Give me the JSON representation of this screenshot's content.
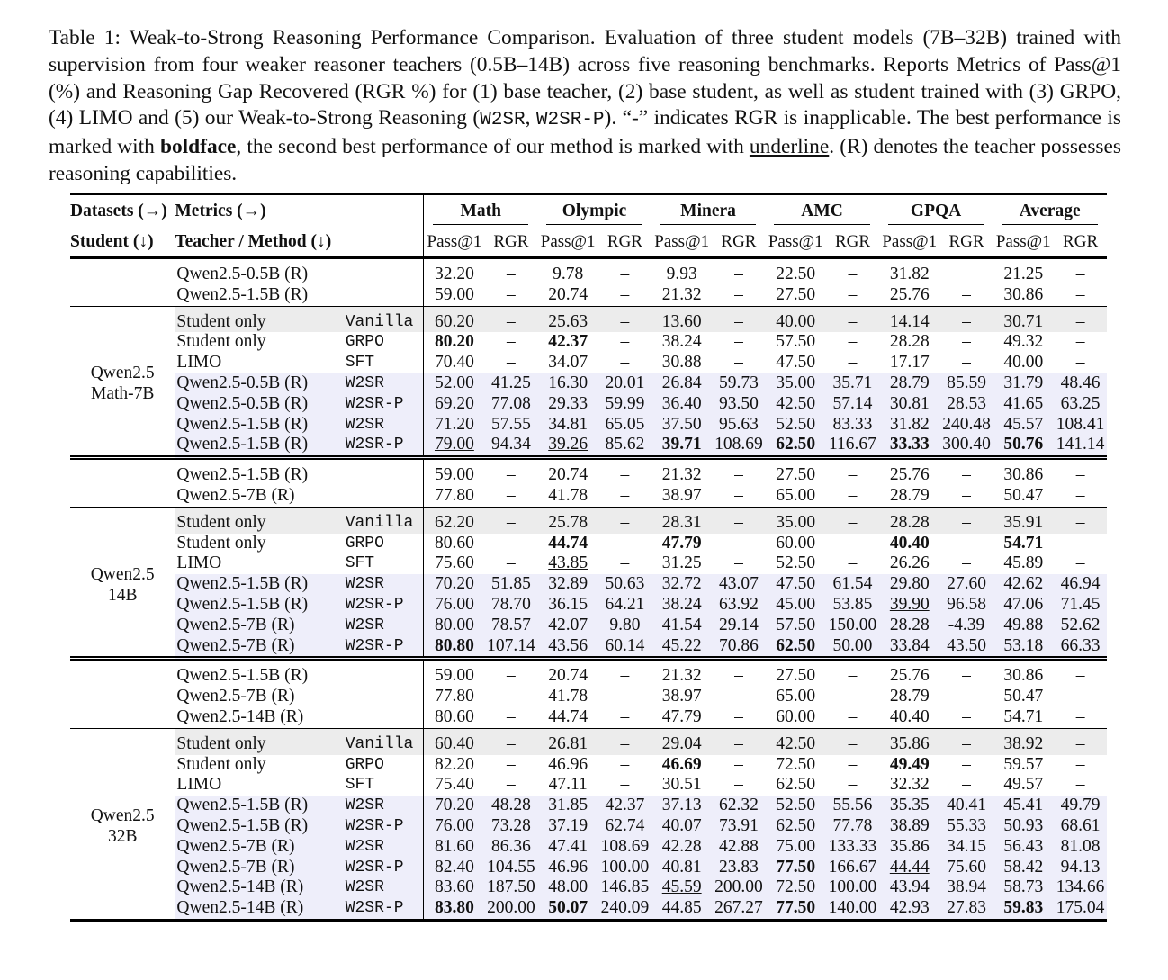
{
  "caption": [
    "Table 1: Weak-to-Strong Reasoning Performance Comparison. Evaluation of three student models (7B–32B) trained with supervision from four weaker reasoner teachers (0.5B–14B) across five reasoning benchmarks. Reports Metrics of Pass@1 (%) and Reasoning Gap Recovered (RGR %) for (1) base teacher, (2) base student, as well as student trained with (3) GRPO, (4) LIMO and (5) our Weak-to-Strong Reasoning (",
    "W2SR",
    ", ",
    "W2SR-P",
    "). “-” indicates RGR is inapplicable. The best performance is marked with ",
    "boldface",
    ", the second best performance of our method is marked with ",
    "underline",
    ". (R) denotes the teacher possesses reasoning capabilities."
  ],
  "table": {
    "header": {
      "datasets_label": "Datasets (→)",
      "metrics_label": "Metrics (→)",
      "student_label": "Student (↓)",
      "teacher_label": "Teacher / Method (↓)",
      "datasets": [
        "Math",
        "Olympic",
        "Minera",
        "AMC",
        "GPQA",
        "Average"
      ],
      "metrics": [
        "Pass@1",
        "RGR"
      ]
    },
    "groups": [
      {
        "student": [
          "Qwen2.5",
          "Math-7B"
        ],
        "teachers": [
          {
            "teacher": "Qwen2.5-0.5B (R)",
            "cells": [
              "32.20",
              "–",
              "9.78",
              "–",
              "9.93",
              "–",
              "22.50",
              "–",
              "31.82",
              null,
              "21.25",
              "–"
            ]
          },
          {
            "teacher": "Qwen2.5-1.5B (R)",
            "cells": [
              "59.00",
              "–",
              "20.74",
              "–",
              "21.32",
              "–",
              "27.50",
              "–",
              "25.76",
              "–",
              "30.86",
              "–"
            ]
          }
        ],
        "methods": [
          {
            "teacher": "Student only",
            "method": "Vanilla",
            "shade": "#ececec",
            "cells": [
              "60.20",
              "–",
              "25.63",
              "–",
              "13.60",
              "–",
              "40.00",
              "–",
              "14.14",
              "–",
              "30.71",
              "–"
            ]
          },
          {
            "teacher": "Student only",
            "method": "GRPO",
            "bold": [
              0,
              2
            ],
            "cells": [
              "80.20",
              "–",
              "42.37",
              "–",
              "38.24",
              "–",
              "57.50",
              "–",
              "28.28",
              "–",
              "49.32",
              "–"
            ]
          },
          {
            "teacher": "LIMO",
            "method": "SFT",
            "cells": [
              "70.40",
              "–",
              "34.07",
              "–",
              "30.88",
              "–",
              "47.50",
              "–",
              "17.17",
              "–",
              "40.00",
              "–"
            ]
          },
          {
            "teacher": "Qwen2.5-0.5B (R)",
            "method": "W2SR",
            "shade": "#eeeefa",
            "cells": [
              "52.00",
              "41.25",
              "16.30",
              "20.01",
              "26.84",
              "59.73",
              "35.00",
              "35.71",
              "28.79",
              "85.59",
              "31.79",
              "48.46"
            ]
          },
          {
            "teacher": "Qwen2.5-0.5B (R)",
            "method": "W2SR-P",
            "shade": "#eeeefa",
            "cells": [
              "69.20",
              "77.08",
              "29.33",
              "59.99",
              "36.40",
              "93.50",
              "42.50",
              "57.14",
              "30.81",
              "28.53",
              "41.65",
              "63.25"
            ]
          },
          {
            "teacher": "Qwen2.5-1.5B (R)",
            "method": "W2SR",
            "shade": "#eeeefa",
            "cells": [
              "71.20",
              "57.55",
              "34.81",
              "65.05",
              "37.50",
              "95.63",
              "52.50",
              "83.33",
              "31.82",
              "240.48",
              "45.57",
              "108.41"
            ]
          },
          {
            "teacher": "Qwen2.5-1.5B (R)",
            "method": "W2SR-P",
            "shade": "#eeeefa",
            "bold": [
              4,
              6,
              8,
              10
            ],
            "underline": [
              0,
              2
            ],
            "cells": [
              "79.00",
              "94.34",
              "39.26",
              "85.62",
              "39.71",
              "108.69",
              "62.50",
              "116.67",
              "33.33",
              "300.40",
              "50.76",
              "141.14"
            ]
          }
        ]
      },
      {
        "student": [
          "Qwen2.5",
          "14B"
        ],
        "teachers": [
          {
            "teacher": "Qwen2.5-1.5B (R)",
            "cells": [
              "59.00",
              "–",
              "20.74",
              "–",
              "21.32",
              "–",
              "27.50",
              "–",
              "25.76",
              "–",
              "30.86",
              "–"
            ]
          },
          {
            "teacher": "Qwen2.5-7B (R)",
            "cells": [
              "77.80",
              "–",
              "41.78",
              "–",
              "38.97",
              "–",
              "65.00",
              "–",
              "28.79",
              "–",
              "50.47",
              "–"
            ]
          }
        ],
        "methods": [
          {
            "teacher": "Student only",
            "method": "Vanilla",
            "shade": "#ececec",
            "cells": [
              "62.20",
              "–",
              "25.78",
              "–",
              "28.31",
              "–",
              "35.00",
              "–",
              "28.28",
              "–",
              "35.91",
              "–"
            ]
          },
          {
            "teacher": "Student only",
            "method": "GRPO",
            "bold": [
              2,
              4,
              8,
              10
            ],
            "cells": [
              "80.60",
              "–",
              "44.74",
              "–",
              "47.79",
              "–",
              "60.00",
              "–",
              "40.40",
              "–",
              "54.71",
              "–"
            ]
          },
          {
            "teacher": "LIMO",
            "method": "SFT",
            "underline": [
              2
            ],
            "cells": [
              "75.60",
              "–",
              "43.85",
              "–",
              "31.25",
              "–",
              "52.50",
              "–",
              "26.26",
              "–",
              "45.89",
              "–"
            ]
          },
          {
            "teacher": "Qwen2.5-1.5B (R)",
            "method": "W2SR",
            "shade": "#eeeefa",
            "cells": [
              "70.20",
              "51.85",
              "32.89",
              "50.63",
              "32.72",
              "43.07",
              "47.50",
              "61.54",
              "29.80",
              "27.60",
              "42.62",
              "46.94"
            ]
          },
          {
            "teacher": "Qwen2.5-1.5B (R)",
            "method": "W2SR-P",
            "shade": "#eeeefa",
            "underline": [
              8
            ],
            "cells": [
              "76.00",
              "78.70",
              "36.15",
              "64.21",
              "38.24",
              "63.92",
              "45.00",
              "53.85",
              "39.90",
              "96.58",
              "47.06",
              "71.45"
            ]
          },
          {
            "teacher": "Qwen2.5-7B (R)",
            "method": "W2SR",
            "shade": "#eeeefa",
            "cells": [
              "80.00",
              "78.57",
              "42.07",
              "9.80",
              "41.54",
              "29.14",
              "57.50",
              "150.00",
              "28.28",
              "-4.39",
              "49.88",
              "52.62"
            ]
          },
          {
            "teacher": "Qwen2.5-7B (R)",
            "method": "W2SR-P",
            "shade": "#eeeefa",
            "bold": [
              0,
              6
            ],
            "underline": [
              4,
              10
            ],
            "cells": [
              "80.80",
              "107.14",
              "43.56",
              "60.14",
              "45.22",
              "70.86",
              "62.50",
              "50.00",
              "33.84",
              "43.50",
              "53.18",
              "66.33"
            ]
          }
        ]
      },
      {
        "student": [
          "Qwen2.5",
          "32B"
        ],
        "teachers": [
          {
            "teacher": "Qwen2.5-1.5B (R)",
            "cells": [
              "59.00",
              "–",
              "20.74",
              "–",
              "21.32",
              "–",
              "27.50",
              "–",
              "25.76",
              "–",
              "30.86",
              "–"
            ]
          },
          {
            "teacher": "Qwen2.5-7B (R)",
            "cells": [
              "77.80",
              "–",
              "41.78",
              "–",
              "38.97",
              "–",
              "65.00",
              "–",
              "28.79",
              "–",
              "50.47",
              "–"
            ]
          },
          {
            "teacher": "Qwen2.5-14B (R)",
            "cells": [
              "80.60",
              "–",
              "44.74",
              "–",
              "47.79",
              "–",
              "60.00",
              "–",
              "40.40",
              "–",
              "54.71",
              "–"
            ]
          }
        ],
        "methods": [
          {
            "teacher": "Student only",
            "method": "Vanilla",
            "shade": "#ececec",
            "cells": [
              "60.40",
              "–",
              "26.81",
              "–",
              "29.04",
              "–",
              "42.50",
              "–",
              "35.86",
              "–",
              "38.92",
              "–"
            ]
          },
          {
            "teacher": "Student only",
            "method": "GRPO",
            "bold": [
              4,
              8
            ],
            "cells": [
              "82.20",
              "–",
              "46.96",
              "–",
              "46.69",
              "–",
              "72.50",
              "–",
              "49.49",
              "–",
              "59.57",
              "–"
            ]
          },
          {
            "teacher": "LIMO",
            "method": "SFT",
            "cells": [
              "75.40",
              "–",
              "47.11",
              "–",
              "30.51",
              "–",
              "62.50",
              "–",
              "32.32",
              "–",
              "49.57",
              "–"
            ]
          },
          {
            "teacher": "Qwen2.5-1.5B (R)",
            "method": "W2SR",
            "shade": "#eeeefa",
            "cells": [
              "70.20",
              "48.28",
              "31.85",
              "42.37",
              "37.13",
              "62.32",
              "52.50",
              "55.56",
              "35.35",
              "40.41",
              "45.41",
              "49.79"
            ]
          },
          {
            "teacher": "Qwen2.5-1.5B (R)",
            "method": "W2SR-P",
            "shade": "#eeeefa",
            "cells": [
              "76.00",
              "73.28",
              "37.19",
              "62.74",
              "40.07",
              "73.91",
              "62.50",
              "77.78",
              "38.89",
              "55.33",
              "50.93",
              "68.61"
            ]
          },
          {
            "teacher": "Qwen2.5-7B (R)",
            "method": "W2SR",
            "shade": "#eeeefa",
            "cells": [
              "81.60",
              "86.36",
              "47.41",
              "108.69",
              "42.28",
              "42.88",
              "75.00",
              "133.33",
              "35.86",
              "34.15",
              "56.43",
              "81.08"
            ]
          },
          {
            "teacher": "Qwen2.5-7B (R)",
            "method": "W2SR-P",
            "shade": "#eeeefa",
            "bold": [
              6
            ],
            "underline": [
              8
            ],
            "cells": [
              "82.40",
              "104.55",
              "46.96",
              "100.00",
              "40.81",
              "23.83",
              "77.50",
              "166.67",
              "44.44",
              "75.60",
              "58.42",
              "94.13"
            ]
          },
          {
            "teacher": "Qwen2.5-14B (R)",
            "method": "W2SR",
            "shade": "#eeeefa",
            "underline": [
              4
            ],
            "cells": [
              "83.60",
              "187.50",
              "48.00",
              "146.85",
              "45.59",
              "200.00",
              "72.50",
              "100.00",
              "43.94",
              "38.94",
              "58.73",
              "134.66"
            ]
          },
          {
            "teacher": "Qwen2.5-14B (R)",
            "method": "W2SR-P",
            "shade": "#eeeefa",
            "bold": [
              0,
              2,
              6,
              10
            ],
            "cells": [
              "83.80",
              "200.00",
              "50.07",
              "240.09",
              "44.85",
              "267.27",
              "77.50",
              "140.00",
              "42.93",
              "27.83",
              "59.83",
              "175.04"
            ]
          }
        ]
      }
    ]
  }
}
